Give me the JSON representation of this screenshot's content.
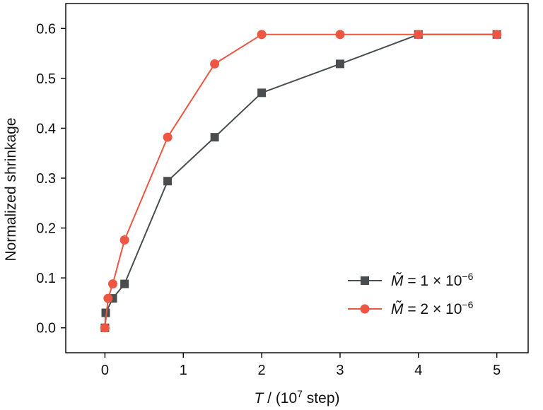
{
  "chart_data": {
    "type": "line",
    "title": "",
    "xlabel": {
      "var": "T",
      "pre": " / (10",
      "sup": "7",
      "post": " step)"
    },
    "ylabel": "Normalized shrinkage",
    "xlim": [
      -0.5,
      5.4
    ],
    "ylim": [
      -0.05,
      0.65
    ],
    "xticks": [
      0,
      1,
      2,
      3,
      4,
      5
    ],
    "xtick_labels": [
      "0",
      "1",
      "2",
      "3",
      "4",
      "5"
    ],
    "yticks": [
      0.0,
      0.1,
      0.2,
      0.3,
      0.4,
      0.5,
      0.6
    ],
    "ytick_labels": [
      "0.0",
      "0.1",
      "0.2",
      "0.3",
      "0.4",
      "0.5",
      "0.6"
    ],
    "grid": false,
    "legend_position": "lower-right",
    "series": [
      {
        "name_var": "M̃",
        "name_eq": " = 1 × 10",
        "name_exp": "−6",
        "color": "#4a4d4f",
        "marker": "square",
        "x": [
          0,
          0.01,
          0.1,
          0.25,
          0.8,
          1.4,
          2,
          3,
          4,
          5
        ],
        "y": [
          0.0,
          0.03,
          0.059,
          0.088,
          0.294,
          0.382,
          0.471,
          0.529,
          0.588,
          0.588
        ]
      },
      {
        "name_var": "M̃",
        "name_eq": " = 2 × 10",
        "name_exp": "−6",
        "color": "#ec5642",
        "marker": "circle",
        "x": [
          0,
          0.04,
          0.1,
          0.25,
          0.8,
          1.4,
          2,
          3,
          4,
          5
        ],
        "y": [
          0.0,
          0.059,
          0.088,
          0.176,
          0.382,
          0.529,
          0.588,
          0.588,
          0.588,
          0.588
        ]
      }
    ]
  }
}
